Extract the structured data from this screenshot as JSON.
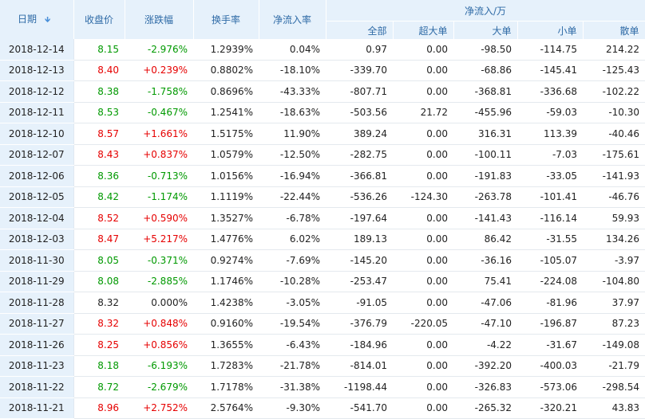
{
  "header": {
    "date": "日期",
    "close": "收盘价",
    "change": "涨跌幅",
    "turnover": "换手率",
    "net_ratio": "净流入率",
    "flow_group": "净流入/万",
    "flow_cols": [
      "全部",
      "超大单",
      "大单",
      "小单",
      "散单"
    ]
  },
  "colors": {
    "up": "#e60000",
    "down": "#009900",
    "header_bg": "#e6f1fb",
    "header_text": "#2e6aa6"
  },
  "rows": [
    {
      "date": "2018-12-14",
      "close": "8.15",
      "change": "-2.976%",
      "dir": "down",
      "turnover": "1.2939%",
      "net_ratio": "0.04%",
      "total": "0.97",
      "super": "0.00",
      "large": "-98.50",
      "small": "-114.75",
      "retail": "214.22"
    },
    {
      "date": "2018-12-13",
      "close": "8.40",
      "change": "+0.239%",
      "dir": "up",
      "turnover": "0.8802%",
      "net_ratio": "-18.10%",
      "total": "-339.70",
      "super": "0.00",
      "large": "-68.86",
      "small": "-145.41",
      "retail": "-125.43"
    },
    {
      "date": "2018-12-12",
      "close": "8.38",
      "change": "-1.758%",
      "dir": "down",
      "turnover": "0.8696%",
      "net_ratio": "-43.33%",
      "total": "-807.71",
      "super": "0.00",
      "large": "-368.81",
      "small": "-336.68",
      "retail": "-102.22"
    },
    {
      "date": "2018-12-11",
      "close": "8.53",
      "change": "-0.467%",
      "dir": "down",
      "turnover": "1.2541%",
      "net_ratio": "-18.63%",
      "total": "-503.56",
      "super": "21.72",
      "large": "-455.96",
      "small": "-59.03",
      "retail": "-10.30"
    },
    {
      "date": "2018-12-10",
      "close": "8.57",
      "change": "+1.661%",
      "dir": "up",
      "turnover": "1.5175%",
      "net_ratio": "11.90%",
      "total": "389.24",
      "super": "0.00",
      "large": "316.31",
      "small": "113.39",
      "retail": "-40.46"
    },
    {
      "date": "2018-12-07",
      "close": "8.43",
      "change": "+0.837%",
      "dir": "up",
      "turnover": "1.0579%",
      "net_ratio": "-12.50%",
      "total": "-282.75",
      "super": "0.00",
      "large": "-100.11",
      "small": "-7.03",
      "retail": "-175.61"
    },
    {
      "date": "2018-12-06",
      "close": "8.36",
      "change": "-0.713%",
      "dir": "down",
      "turnover": "1.0156%",
      "net_ratio": "-16.94%",
      "total": "-366.81",
      "super": "0.00",
      "large": "-191.83",
      "small": "-33.05",
      "retail": "-141.93"
    },
    {
      "date": "2018-12-05",
      "close": "8.42",
      "change": "-1.174%",
      "dir": "down",
      "turnover": "1.1119%",
      "net_ratio": "-22.44%",
      "total": "-536.26",
      "super": "-124.30",
      "large": "-263.78",
      "small": "-101.41",
      "retail": "-46.76"
    },
    {
      "date": "2018-12-04",
      "close": "8.52",
      "change": "+0.590%",
      "dir": "up",
      "turnover": "1.3527%",
      "net_ratio": "-6.78%",
      "total": "-197.64",
      "super": "0.00",
      "large": "-141.43",
      "small": "-116.14",
      "retail": "59.93"
    },
    {
      "date": "2018-12-03",
      "close": "8.47",
      "change": "+5.217%",
      "dir": "up",
      "turnover": "1.4776%",
      "net_ratio": "6.02%",
      "total": "189.13",
      "super": "0.00",
      "large": "86.42",
      "small": "-31.55",
      "retail": "134.26"
    },
    {
      "date": "2018-11-30",
      "close": "8.05",
      "change": "-0.371%",
      "dir": "down",
      "turnover": "0.9274%",
      "net_ratio": "-7.69%",
      "total": "-145.20",
      "super": "0.00",
      "large": "-36.16",
      "small": "-105.07",
      "retail": "-3.97"
    },
    {
      "date": "2018-11-29",
      "close": "8.08",
      "change": "-2.885%",
      "dir": "down",
      "turnover": "1.1746%",
      "net_ratio": "-10.28%",
      "total": "-253.47",
      "super": "0.00",
      "large": "75.41",
      "small": "-224.08",
      "retail": "-104.80"
    },
    {
      "date": "2018-11-28",
      "close": "8.32",
      "change": "0.000%",
      "dir": "flat",
      "turnover": "1.4238%",
      "net_ratio": "-3.05%",
      "total": "-91.05",
      "super": "0.00",
      "large": "-47.06",
      "small": "-81.96",
      "retail": "37.97"
    },
    {
      "date": "2018-11-27",
      "close": "8.32",
      "change": "+0.848%",
      "dir": "up",
      "turnover": "0.9160%",
      "net_ratio": "-19.54%",
      "total": "-376.79",
      "super": "-220.05",
      "large": "-47.10",
      "small": "-196.87",
      "retail": "87.23"
    },
    {
      "date": "2018-11-26",
      "close": "8.25",
      "change": "+0.856%",
      "dir": "up",
      "turnover": "1.3655%",
      "net_ratio": "-6.43%",
      "total": "-184.96",
      "super": "0.00",
      "large": "-4.22",
      "small": "-31.67",
      "retail": "-149.08"
    },
    {
      "date": "2018-11-23",
      "close": "8.18",
      "change": "-6.193%",
      "dir": "down",
      "turnover": "1.7283%",
      "net_ratio": "-21.78%",
      "total": "-814.01",
      "super": "0.00",
      "large": "-392.20",
      "small": "-400.03",
      "retail": "-21.79"
    },
    {
      "date": "2018-11-22",
      "close": "8.72",
      "change": "-2.679%",
      "dir": "down",
      "turnover": "1.7178%",
      "net_ratio": "-31.38%",
      "total": "-1198.44",
      "super": "0.00",
      "large": "-326.83",
      "small": "-573.06",
      "retail": "-298.54"
    },
    {
      "date": "2018-11-21",
      "close": "8.96",
      "change": "+2.752%",
      "dir": "up",
      "turnover": "2.5764%",
      "net_ratio": "-9.30%",
      "total": "-541.70",
      "super": "0.00",
      "large": "-265.32",
      "small": "-320.21",
      "retail": "43.83"
    }
  ]
}
